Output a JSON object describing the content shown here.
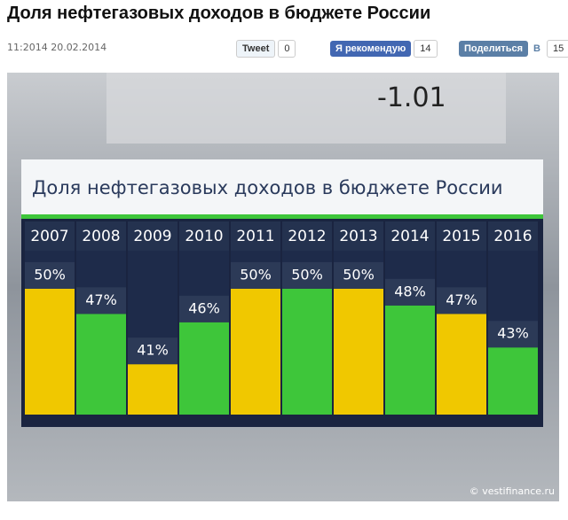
{
  "header": {
    "title": "Доля нефтегазовых доходов в бюджете России",
    "date": "11:2014 20.02.2014",
    "tweet": "Tweet",
    "tweet_count": "0",
    "recommend": "Я рекомендую",
    "recommend_count": "14",
    "share": "Поделиться",
    "share_icon": "B",
    "share_count": "15"
  },
  "image": {
    "background_text": "-1.01",
    "copyright": "© vestifinance.ru"
  },
  "chart_data": {
    "type": "bar",
    "title": "Доля нефтегазовых доходов  в бюджете России",
    "categories": [
      "2007",
      "2008",
      "2009",
      "2010",
      "2011",
      "2012",
      "2013",
      "2014",
      "2015",
      "2016"
    ],
    "values": [
      50,
      47,
      41,
      46,
      50,
      50,
      50,
      48,
      47,
      43
    ],
    "value_labels": [
      "50%",
      "47%",
      "41%",
      "46%",
      "50%",
      "50%",
      "50%",
      "48%",
      "47%",
      "43%"
    ],
    "colors": [
      "#f0c800",
      "#3ec63a",
      "#f0c800",
      "#3ec63a",
      "#f0c800",
      "#3ec63a",
      "#f0c800",
      "#3ec63a",
      "#f0c800",
      "#3ec63a"
    ],
    "ylim": [
      35,
      54
    ]
  }
}
